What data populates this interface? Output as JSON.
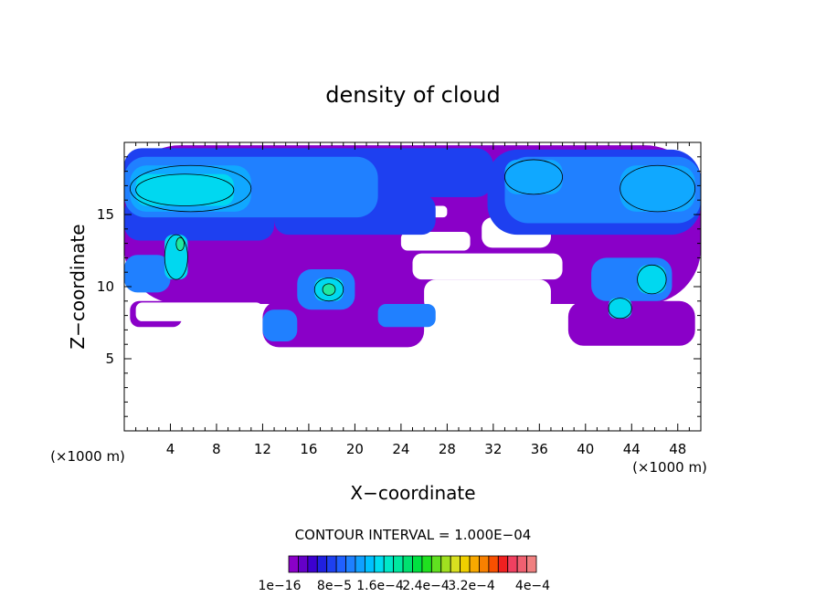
{
  "chart_data": {
    "type": "heatmap",
    "title": "density of cloud",
    "xlabel": "X−coordinate",
    "ylabel": "Z−coordinate",
    "x_unit_left": "(×1000 m)",
    "x_unit_right": "(×1000 m)",
    "xlim": [
      0,
      50
    ],
    "ylim": [
      0,
      20
    ],
    "x_ticks": [
      4,
      8,
      12,
      16,
      20,
      24,
      28,
      32,
      36,
      40,
      44,
      48
    ],
    "y_ticks": [
      5,
      10,
      15
    ],
    "contour_interval_label": "CONTOUR INTERVAL = 1.000E−04",
    "colorbar": {
      "labels": [
        "1e−16",
        "8e−5",
        "1.6e−4",
        "2.4e−4",
        "3.2e−4",
        "4e−4"
      ],
      "colors": [
        "#8a00c8",
        "#6400c8",
        "#3c00d0",
        "#2020e0",
        "#1e40f0",
        "#2060ff",
        "#1e80ff",
        "#10a0ff",
        "#00c0ff",
        "#00dcf0",
        "#00e8c8",
        "#00e8a0",
        "#00e070",
        "#00e040",
        "#20e020",
        "#60e020",
        "#a0e020",
        "#d8e020",
        "#f0d000",
        "#f8a800",
        "#f88000",
        "#f85000",
        "#f02020",
        "#f04060",
        "#f06070",
        "#f08080"
      ]
    },
    "regions": [
      {
        "level": 1,
        "x": [
          0,
          50
        ],
        "z": [
          8.8,
          19.8
        ]
      },
      {
        "level": 1,
        "x": [
          12,
          26
        ],
        "z": [
          5.8,
          9
        ]
      },
      {
        "level": 1,
        "x": [
          38.5,
          49.5
        ],
        "z": [
          5.9,
          9
        ]
      },
      {
        "level": 1,
        "x": [
          0.5,
          5
        ],
        "z": [
          7.2,
          9
        ]
      },
      {
        "level": 0,
        "x": [
          24,
          30
        ],
        "z": [
          12.5,
          13.8
        ]
      },
      {
        "level": 0,
        "x": [
          25,
          38
        ],
        "z": [
          10.5,
          12.3
        ]
      },
      {
        "level": 0,
        "x": [
          31,
          37
        ],
        "z": [
          12.7,
          14.8
        ]
      },
      {
        "level": 0,
        "x": [
          22,
          28
        ],
        "z": [
          14.8,
          15.6
        ]
      },
      {
        "level": 0,
        "x": [
          26,
          37
        ],
        "z": [
          8.2,
          10.5
        ]
      },
      {
        "level": 0,
        "x": [
          1,
          12
        ],
        "z": [
          7.6,
          8.9
        ]
      },
      {
        "level": 0,
        "x": [
          29,
          38
        ],
        "z": [
          5.8,
          8.2
        ]
      },
      {
        "level": 2,
        "x": [
          0,
          32
        ],
        "z": [
          16.2,
          19.6
        ]
      },
      {
        "level": 2,
        "x": [
          0,
          13
        ],
        "z": [
          13.2,
          16.2
        ]
      },
      {
        "level": 2,
        "x": [
          31.5,
          50
        ],
        "z": [
          13.6,
          19.5
        ]
      },
      {
        "level": 2,
        "x": [
          13,
          27
        ],
        "z": [
          13.6,
          16.4
        ]
      },
      {
        "level": 3,
        "x": [
          0,
          22
        ],
        "z": [
          14.8,
          19
        ]
      },
      {
        "level": 3,
        "x": [
          33,
          50
        ],
        "z": [
          14.4,
          19
        ]
      },
      {
        "level": 3,
        "x": [
          0,
          4
        ],
        "z": [
          9.6,
          12.2
        ]
      },
      {
        "level": 3,
        "x": [
          15,
          20
        ],
        "z": [
          8.4,
          11.2
        ]
      },
      {
        "level": 3,
        "x": [
          40.5,
          47.5
        ],
        "z": [
          9,
          12
        ]
      },
      {
        "level": 3,
        "x": [
          12,
          15
        ],
        "z": [
          6.2,
          8.4
        ]
      },
      {
        "level": 3,
        "x": [
          22,
          27
        ],
        "z": [
          7.2,
          8.8
        ]
      },
      {
        "level": 4,
        "x": [
          0.5,
          11
        ],
        "z": [
          15.2,
          18.4
        ]
      },
      {
        "level": 4,
        "x": [
          33,
          38
        ],
        "z": [
          16.4,
          18.8
        ]
      },
      {
        "level": 4,
        "x": [
          43,
          49.5
        ],
        "z": [
          15.2,
          18.4
        ]
      },
      {
        "level": 5,
        "x": [
          1,
          9.5
        ],
        "z": [
          15.6,
          17.8
        ]
      },
      {
        "level": 5,
        "x": [
          16.5,
          19
        ],
        "z": [
          9,
          10.6
        ]
      },
      {
        "level": 5,
        "x": [
          3.5,
          5.5
        ],
        "z": [
          10.5,
          13.6
        ]
      },
      {
        "level": 5,
        "x": [
          44.5,
          47
        ],
        "z": [
          9.5,
          11.5
        ]
      },
      {
        "level": 5,
        "x": [
          42,
          44
        ],
        "z": [
          7.8,
          9.2
        ]
      },
      {
        "level": 6,
        "x": [
          4.5,
          5.2
        ],
        "z": [
          12.5,
          13.4
        ]
      },
      {
        "level": 6,
        "x": [
          17.2,
          18.3
        ],
        "z": [
          9.4,
          10.2
        ]
      }
    ]
  }
}
